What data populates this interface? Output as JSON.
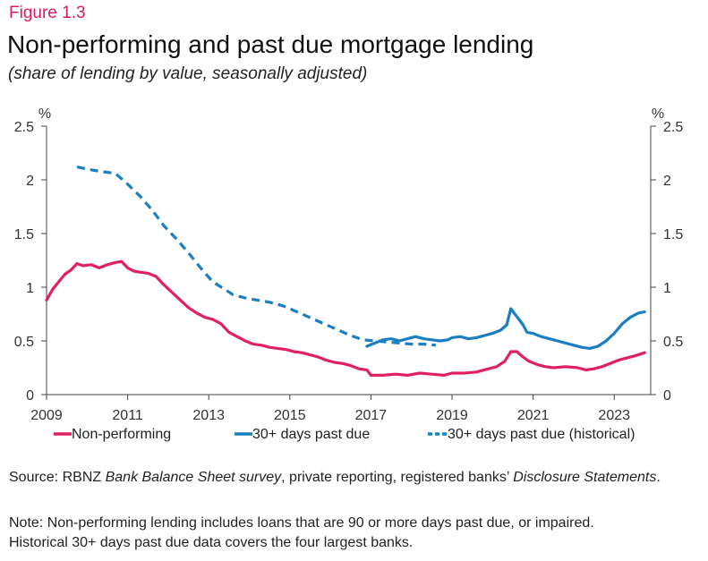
{
  "figure_label": "Figure 1.3",
  "title": "Non-performing and past due mortgage lending",
  "subtitle": "(share of lending by value, seasonally adjusted)",
  "source": {
    "prefix": "Source: RBNZ ",
    "survey": "Bank Balance Sheet survey",
    "middle": ", private reporting, registered banks’ ",
    "statements": "Disclosure Statements",
    "suffix": "."
  },
  "note_line1": "Note: Non-performing lending includes loans that are 90 or more days past due, or impaired.",
  "note_line2": "Historical 30+ days past due data covers the four largest banks.",
  "chart_data": {
    "type": "line",
    "ylabel_left": "%",
    "ylabel_right": "%",
    "xlim": [
      2009,
      2023.9
    ],
    "ylim": [
      0,
      2.5
    ],
    "x_ticks": [
      2009,
      2011,
      2013,
      2015,
      2017,
      2019,
      2021,
      2023
    ],
    "x_tick_labels": [
      "2009",
      "2011",
      "2013",
      "2015",
      "2017",
      "2019",
      "2021",
      "2023"
    ],
    "y_ticks": [
      0,
      0.5,
      1,
      1.5,
      2,
      2.5
    ],
    "y_tick_labels": [
      "0",
      "0.5",
      "1",
      "1.5",
      "2",
      "2.5"
    ],
    "grid": false,
    "legend_position": "bottom",
    "series": [
      {
        "name": "Non-performing",
        "color": "#e0215e",
        "style": "solid",
        "points": [
          [
            2009.0,
            0.88
          ],
          [
            2009.15,
            0.98
          ],
          [
            2009.3,
            1.05
          ],
          [
            2009.45,
            1.12
          ],
          [
            2009.6,
            1.16
          ],
          [
            2009.75,
            1.22
          ],
          [
            2009.9,
            1.2
          ],
          [
            2010.1,
            1.21
          ],
          [
            2010.3,
            1.18
          ],
          [
            2010.5,
            1.21
          ],
          [
            2010.7,
            1.23
          ],
          [
            2010.85,
            1.24
          ],
          [
            2011.0,
            1.18
          ],
          [
            2011.15,
            1.15
          ],
          [
            2011.3,
            1.14
          ],
          [
            2011.5,
            1.13
          ],
          [
            2011.7,
            1.1
          ],
          [
            2011.9,
            1.02
          ],
          [
            2012.1,
            0.95
          ],
          [
            2012.3,
            0.88
          ],
          [
            2012.5,
            0.81
          ],
          [
            2012.7,
            0.76
          ],
          [
            2012.9,
            0.72
          ],
          [
            2013.1,
            0.7
          ],
          [
            2013.3,
            0.66
          ],
          [
            2013.5,
            0.58
          ],
          [
            2013.7,
            0.54
          ],
          [
            2013.9,
            0.5
          ],
          [
            2014.1,
            0.47
          ],
          [
            2014.3,
            0.46
          ],
          [
            2014.5,
            0.44
          ],
          [
            2014.7,
            0.43
          ],
          [
            2014.9,
            0.42
          ],
          [
            2015.1,
            0.4
          ],
          [
            2015.3,
            0.39
          ],
          [
            2015.5,
            0.37
          ],
          [
            2015.7,
            0.35
          ],
          [
            2015.9,
            0.32
          ],
          [
            2016.1,
            0.3
          ],
          [
            2016.3,
            0.29
          ],
          [
            2016.5,
            0.27
          ],
          [
            2016.7,
            0.24
          ],
          [
            2016.9,
            0.23
          ],
          [
            2017.0,
            0.18
          ],
          [
            2017.3,
            0.18
          ],
          [
            2017.6,
            0.19
          ],
          [
            2017.9,
            0.18
          ],
          [
            2018.2,
            0.2
          ],
          [
            2018.5,
            0.19
          ],
          [
            2018.8,
            0.18
          ],
          [
            2019.0,
            0.2
          ],
          [
            2019.3,
            0.2
          ],
          [
            2019.6,
            0.21
          ],
          [
            2019.9,
            0.24
          ],
          [
            2020.1,
            0.26
          ],
          [
            2020.3,
            0.31
          ],
          [
            2020.45,
            0.4
          ],
          [
            2020.6,
            0.4
          ],
          [
            2020.75,
            0.35
          ],
          [
            2020.9,
            0.31
          ],
          [
            2021.1,
            0.28
          ],
          [
            2021.3,
            0.26
          ],
          [
            2021.5,
            0.25
          ],
          [
            2021.8,
            0.26
          ],
          [
            2022.1,
            0.25
          ],
          [
            2022.3,
            0.23
          ],
          [
            2022.5,
            0.24
          ],
          [
            2022.7,
            0.26
          ],
          [
            2022.9,
            0.29
          ],
          [
            2023.1,
            0.32
          ],
          [
            2023.3,
            0.34
          ],
          [
            2023.5,
            0.36
          ],
          [
            2023.75,
            0.39
          ]
        ]
      },
      {
        "name": "30+ days past due",
        "color": "#1a7fc1",
        "style": "solid",
        "points": [
          [
            2016.9,
            0.45
          ],
          [
            2017.1,
            0.48
          ],
          [
            2017.3,
            0.51
          ],
          [
            2017.5,
            0.52
          ],
          [
            2017.7,
            0.5
          ],
          [
            2017.9,
            0.52
          ],
          [
            2018.1,
            0.54
          ],
          [
            2018.3,
            0.52
          ],
          [
            2018.5,
            0.51
          ],
          [
            2018.7,
            0.5
          ],
          [
            2018.9,
            0.51
          ],
          [
            2019.0,
            0.53
          ],
          [
            2019.2,
            0.54
          ],
          [
            2019.4,
            0.52
          ],
          [
            2019.6,
            0.53
          ],
          [
            2019.8,
            0.55
          ],
          [
            2020.0,
            0.57
          ],
          [
            2020.2,
            0.6
          ],
          [
            2020.35,
            0.65
          ],
          [
            2020.45,
            0.8
          ],
          [
            2020.55,
            0.75
          ],
          [
            2020.65,
            0.7
          ],
          [
            2020.75,
            0.65
          ],
          [
            2020.85,
            0.58
          ],
          [
            2021.0,
            0.57
          ],
          [
            2021.2,
            0.54
          ],
          [
            2021.4,
            0.52
          ],
          [
            2021.6,
            0.5
          ],
          [
            2021.8,
            0.48
          ],
          [
            2022.0,
            0.46
          ],
          [
            2022.2,
            0.44
          ],
          [
            2022.4,
            0.43
          ],
          [
            2022.6,
            0.45
          ],
          [
            2022.8,
            0.5
          ],
          [
            2023.0,
            0.57
          ],
          [
            2023.2,
            0.66
          ],
          [
            2023.4,
            0.72
          ],
          [
            2023.6,
            0.76
          ],
          [
            2023.75,
            0.77
          ]
        ]
      },
      {
        "name": "30+ days past due (historical)",
        "color": "#1a7fc1",
        "style": "dashed",
        "points": [
          [
            2009.75,
            2.12
          ],
          [
            2010.0,
            2.1
          ],
          [
            2010.3,
            2.08
          ],
          [
            2010.7,
            2.06
          ],
          [
            2011.0,
            1.96
          ],
          [
            2011.3,
            1.85
          ],
          [
            2011.6,
            1.72
          ],
          [
            2011.9,
            1.57
          ],
          [
            2012.2,
            1.45
          ],
          [
            2012.5,
            1.32
          ],
          [
            2012.8,
            1.18
          ],
          [
            2013.1,
            1.05
          ],
          [
            2013.4,
            0.98
          ],
          [
            2013.6,
            0.93
          ],
          [
            2013.9,
            0.9
          ],
          [
            2014.2,
            0.88
          ],
          [
            2014.5,
            0.86
          ],
          [
            2014.8,
            0.83
          ],
          [
            2015.0,
            0.8
          ],
          [
            2015.3,
            0.75
          ],
          [
            2015.6,
            0.7
          ],
          [
            2015.9,
            0.65
          ],
          [
            2016.2,
            0.6
          ],
          [
            2016.5,
            0.55
          ],
          [
            2016.8,
            0.51
          ],
          [
            2017.1,
            0.5
          ],
          [
            2017.4,
            0.49
          ],
          [
            2017.7,
            0.48
          ],
          [
            2018.0,
            0.47
          ],
          [
            2018.3,
            0.47
          ],
          [
            2018.6,
            0.46
          ]
        ]
      }
    ]
  }
}
